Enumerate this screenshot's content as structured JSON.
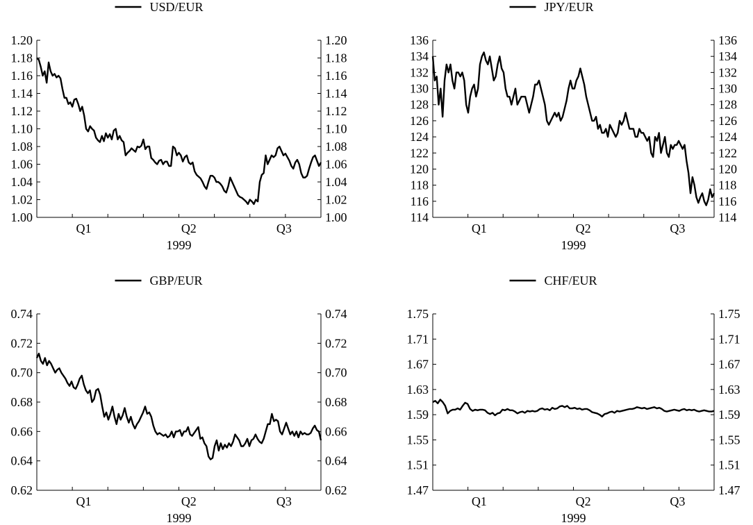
{
  "chart_data": [
    {
      "type": "line",
      "year_label": "1999",
      "quarter_labels": [
        "Q1",
        "Q2",
        "Q3"
      ],
      "ylim": [
        1.0,
        1.2
      ],
      "yticks": [
        "1.00",
        "1.02",
        "1.04",
        "1.06",
        "1.08",
        "1.10",
        "1.12",
        "1.14",
        "1.16",
        "1.18",
        "1.20"
      ],
      "series": [
        {
          "name": "USD/EUR",
          "color": "#000000",
          "values": [
            1.18,
            1.178,
            1.17,
            1.16,
            1.165,
            1.152,
            1.175,
            1.165,
            1.16,
            1.162,
            1.158,
            1.16,
            1.157,
            1.145,
            1.135,
            1.135,
            1.128,
            1.13,
            1.125,
            1.133,
            1.134,
            1.128,
            1.12,
            1.125,
            1.115,
            1.1,
            1.097,
            1.103,
            1.1,
            1.098,
            1.09,
            1.087,
            1.085,
            1.092,
            1.086,
            1.095,
            1.09,
            1.094,
            1.088,
            1.098,
            1.1,
            1.088,
            1.092,
            1.087,
            1.085,
            1.07,
            1.073,
            1.075,
            1.078,
            1.076,
            1.074,
            1.08,
            1.079,
            1.081,
            1.088,
            1.077,
            1.08,
            1.08,
            1.067,
            1.065,
            1.062,
            1.06,
            1.064,
            1.065,
            1.06,
            1.063,
            1.063,
            1.058,
            1.058,
            1.08,
            1.078,
            1.07,
            1.073,
            1.07,
            1.063,
            1.068,
            1.07,
            1.062,
            1.06,
            1.062,
            1.052,
            1.048,
            1.046,
            1.044,
            1.04,
            1.035,
            1.032,
            1.04,
            1.047,
            1.047,
            1.045,
            1.04,
            1.04,
            1.038,
            1.035,
            1.03,
            1.028,
            1.035,
            1.045,
            1.04,
            1.035,
            1.03,
            1.025,
            1.023,
            1.022,
            1.02,
            1.018,
            1.015,
            1.02,
            1.018,
            1.015,
            1.02,
            1.018,
            1.04,
            1.048,
            1.05,
            1.07,
            1.06,
            1.065,
            1.07,
            1.068,
            1.07,
            1.078,
            1.08,
            1.075,
            1.07,
            1.072,
            1.068,
            1.064,
            1.058,
            1.055,
            1.062,
            1.065,
            1.06,
            1.05,
            1.045,
            1.045,
            1.047,
            1.055,
            1.062,
            1.068,
            1.07,
            1.064,
            1.058,
            1.062
          ]
        }
      ]
    },
    {
      "type": "line",
      "year_label": "1999",
      "quarter_labels": [
        "Q1",
        "Q2",
        "Q3"
      ],
      "ylim": [
        114,
        136
      ],
      "yticks": [
        "114",
        "116",
        "118",
        "120",
        "122",
        "124",
        "126",
        "128",
        "130",
        "132",
        "134",
        "136"
      ],
      "series": [
        {
          "name": "JPY/EUR",
          "color": "#000000",
          "values": [
            134,
            131,
            131.5,
            128,
            130,
            126.5,
            131,
            133,
            132,
            133,
            131,
            130,
            132,
            132,
            131.5,
            132,
            131,
            128,
            127,
            129,
            130,
            130.5,
            129,
            130,
            133,
            134,
            134.5,
            133.5,
            133,
            134,
            132.5,
            131,
            131.5,
            133,
            134,
            132.5,
            132,
            130,
            129,
            129,
            128,
            129,
            130,
            128,
            128.5,
            129,
            129,
            129,
            128,
            127,
            128,
            129,
            130.5,
            130.5,
            131,
            130,
            129,
            128,
            126,
            125.5,
            126,
            126.5,
            127,
            126.5,
            127,
            126,
            126.5,
            127.5,
            128.5,
            130,
            131,
            130,
            130,
            131,
            131.5,
            132.5,
            131.5,
            130.5,
            129,
            128,
            127,
            126,
            126,
            126.5,
            125,
            125.5,
            124.5,
            124.5,
            125,
            124,
            125.5,
            125,
            124.5,
            124,
            124.5,
            126,
            125.5,
            126,
            127,
            126,
            125,
            125,
            125,
            124,
            124,
            125,
            124.5,
            124.5,
            124,
            123.5,
            124,
            122,
            121.5,
            124,
            123.5,
            124.5,
            122,
            123,
            124,
            122,
            121.5,
            123,
            122.5,
            123,
            123,
            123.5,
            123,
            122.5,
            123,
            121,
            119.5,
            117,
            119,
            118,
            116.5,
            115.8,
            116.5,
            117,
            116,
            115.5,
            116.2,
            117.5,
            116.5,
            117
          ]
        }
      ]
    },
    {
      "type": "line",
      "year_label": "1999",
      "quarter_labels": [
        "Q1",
        "Q2",
        "Q3"
      ],
      "ylim": [
        0.62,
        0.74
      ],
      "yticks": [
        "0.62",
        "0.64",
        "0.66",
        "0.68",
        "0.70",
        "0.72",
        "0.74"
      ],
      "series": [
        {
          "name": "GBP/EUR",
          "color": "#000000",
          "values": [
            0.71,
            0.713,
            0.708,
            0.706,
            0.71,
            0.705,
            0.708,
            0.706,
            0.703,
            0.7,
            0.702,
            0.703,
            0.7,
            0.698,
            0.696,
            0.693,
            0.691,
            0.694,
            0.69,
            0.689,
            0.692,
            0.696,
            0.698,
            0.692,
            0.688,
            0.686,
            0.688,
            0.68,
            0.682,
            0.688,
            0.689,
            0.685,
            0.677,
            0.67,
            0.673,
            0.668,
            0.672,
            0.677,
            0.67,
            0.665,
            0.672,
            0.668,
            0.671,
            0.676,
            0.67,
            0.666,
            0.67,
            0.665,
            0.662,
            0.665,
            0.667,
            0.67,
            0.673,
            0.677,
            0.672,
            0.673,
            0.67,
            0.664,
            0.66,
            0.658,
            0.659,
            0.658,
            0.657,
            0.658,
            0.656,
            0.657,
            0.66,
            0.656,
            0.66,
            0.66,
            0.661,
            0.657,
            0.66,
            0.66,
            0.663,
            0.658,
            0.657,
            0.659,
            0.661,
            0.663,
            0.655,
            0.656,
            0.652,
            0.65,
            0.643,
            0.641,
            0.642,
            0.65,
            0.654,
            0.647,
            0.652,
            0.648,
            0.651,
            0.649,
            0.652,
            0.65,
            0.653,
            0.658,
            0.656,
            0.654,
            0.65,
            0.65,
            0.652,
            0.655,
            0.65,
            0.654,
            0.655,
            0.658,
            0.655,
            0.653,
            0.652,
            0.655,
            0.66,
            0.665,
            0.665,
            0.672,
            0.667,
            0.668,
            0.667,
            0.66,
            0.658,
            0.662,
            0.666,
            0.662,
            0.658,
            0.66,
            0.657,
            0.66,
            0.656,
            0.66,
            0.658,
            0.659,
            0.658,
            0.658,
            0.659,
            0.662,
            0.664,
            0.661,
            0.66,
            0.654
          ]
        }
      ]
    },
    {
      "type": "line",
      "year_label": "1999",
      "quarter_labels": [
        "Q1",
        "Q2",
        "Q3"
      ],
      "ylim": [
        1.47,
        1.75
      ],
      "yticks": [
        "1.47",
        "1.51",
        "1.55",
        "1.59",
        "1.63",
        "1.67",
        "1.71",
        "1.75"
      ],
      "series": [
        {
          "name": "CHF/EUR",
          "color": "#000000",
          "values": [
            1.61,
            1.612,
            1.608,
            1.614,
            1.61,
            1.604,
            1.592,
            1.596,
            1.598,
            1.598,
            1.6,
            1.598,
            1.604,
            1.609,
            1.607,
            1.599,
            1.596,
            1.598,
            1.597,
            1.598,
            1.598,
            1.597,
            1.593,
            1.591,
            1.593,
            1.589,
            1.592,
            1.593,
            1.598,
            1.597,
            1.599,
            1.597,
            1.597,
            1.595,
            1.592,
            1.594,
            1.595,
            1.593,
            1.596,
            1.595,
            1.596,
            1.595,
            1.596,
            1.599,
            1.6,
            1.598,
            1.599,
            1.597,
            1.601,
            1.599,
            1.6,
            1.603,
            1.604,
            1.602,
            1.604,
            1.6,
            1.6,
            1.601,
            1.599,
            1.6,
            1.598,
            1.599,
            1.599,
            1.597,
            1.594,
            1.593,
            1.592,
            1.59,
            1.587,
            1.591,
            1.592,
            1.594,
            1.595,
            1.593,
            1.596,
            1.595,
            1.596,
            1.597,
            1.598,
            1.599,
            1.599,
            1.6,
            1.602,
            1.601,
            1.6,
            1.601,
            1.599,
            1.6,
            1.601,
            1.602,
            1.6,
            1.601,
            1.599,
            1.596,
            1.595,
            1.596,
            1.597,
            1.598,
            1.597,
            1.596,
            1.598,
            1.599,
            1.597,
            1.598,
            1.597,
            1.598,
            1.596,
            1.595,
            1.596,
            1.597,
            1.596,
            1.595,
            1.595,
            1.596
          ]
        }
      ]
    }
  ]
}
